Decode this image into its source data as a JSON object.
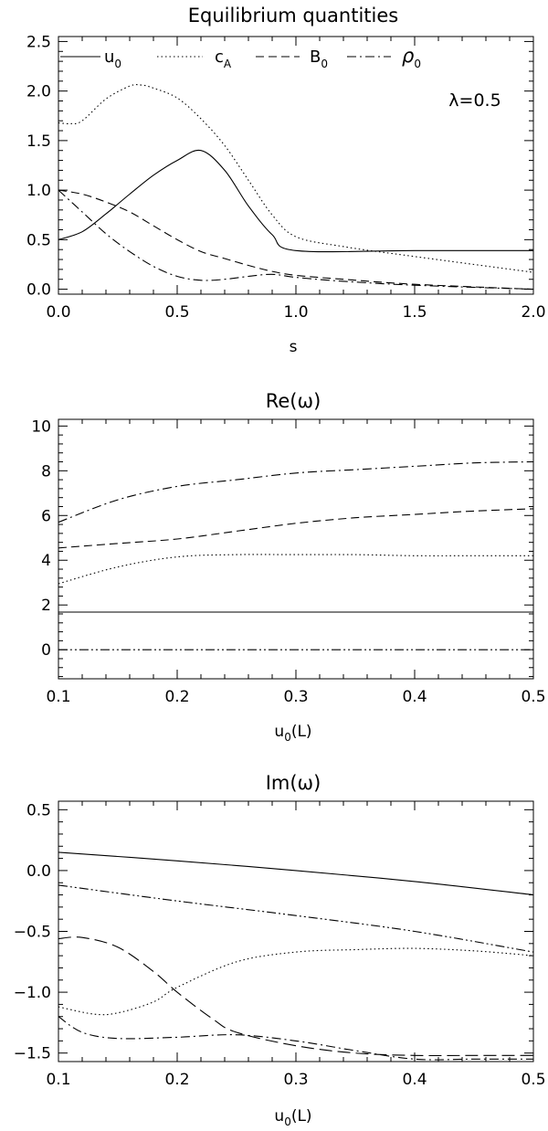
{
  "chart_data": [
    {
      "type": "line",
      "title": "Equilibrium quantities",
      "xlabel": "s",
      "ylabel": "",
      "xlim": [
        0,
        2
      ],
      "ylim": [
        -0.05,
        2.55
      ],
      "xticks": [
        "0.0",
        "0.5",
        "1.0",
        "1.5",
        "2.0"
      ],
      "yticks": [
        "0.0",
        "0.5",
        "1.0",
        "1.5",
        "2.0",
        "2.5"
      ],
      "annotation": "λ=0.5",
      "legend": "top, horizontal",
      "series": [
        {
          "name": "u",
          "subscript": "0",
          "dash": "solid",
          "x": [
            0,
            0.1,
            0.2,
            0.3,
            0.4,
            0.5,
            0.6,
            0.7,
            0.8,
            0.9,
            1.0,
            1.5,
            2.0
          ],
          "y": [
            0.5,
            0.58,
            0.76,
            0.96,
            1.15,
            1.3,
            1.4,
            1.2,
            0.84,
            0.55,
            0.39,
            0.39,
            0.39
          ]
        },
        {
          "name": "c",
          "subscript": "A",
          "dash": "dotted",
          "x": [
            0,
            0.05,
            0.1,
            0.2,
            0.3,
            0.35,
            0.4,
            0.5,
            0.6,
            0.7,
            0.8,
            0.9,
            1.0,
            1.2,
            1.5,
            2.0
          ],
          "y": [
            1.68,
            1.67,
            1.7,
            1.92,
            2.05,
            2.06,
            2.03,
            1.93,
            1.72,
            1.45,
            1.1,
            0.75,
            0.53,
            0.43,
            0.33,
            0.17
          ]
        },
        {
          "name": "B",
          "subscript": "0",
          "dash": "dashed",
          "x": [
            0,
            0.1,
            0.2,
            0.3,
            0.4,
            0.5,
            0.6,
            0.7,
            0.8,
            0.9,
            1.0,
            1.2,
            1.5,
            2.0
          ],
          "y": [
            1.0,
            0.96,
            0.88,
            0.78,
            0.64,
            0.5,
            0.38,
            0.31,
            0.24,
            0.18,
            0.14,
            0.1,
            0.05,
            0.0
          ]
        },
        {
          "name": "ρ",
          "subscript": "0",
          "dash": "dashdot",
          "x": [
            0,
            0.1,
            0.2,
            0.3,
            0.4,
            0.5,
            0.6,
            0.7,
            0.8,
            0.9,
            1.0,
            1.2,
            1.5,
            2.0
          ],
          "y": [
            1.0,
            0.78,
            0.56,
            0.38,
            0.23,
            0.13,
            0.09,
            0.1,
            0.13,
            0.15,
            0.12,
            0.08,
            0.04,
            0.0
          ]
        }
      ]
    },
    {
      "type": "line",
      "title": "Re(ω)",
      "xlabel": "u",
      "xlabel_sub": "0",
      "xlabel_suffix": "(L)",
      "ylabel": "",
      "xlim": [
        0.1,
        0.5
      ],
      "ylim": [
        -1.3,
        10.3
      ],
      "xticks": [
        "0.1",
        "0.2",
        "0.3",
        "0.4",
        "0.5"
      ],
      "yticks": [
        "0",
        "2",
        "4",
        "6",
        "8",
        "10"
      ],
      "series": [
        {
          "dash": "dashdot",
          "x": [
            0.1,
            0.15,
            0.2,
            0.25,
            0.3,
            0.35,
            0.4,
            0.45,
            0.5
          ],
          "y": [
            5.7,
            6.7,
            7.3,
            7.6,
            7.9,
            8.05,
            8.2,
            8.35,
            8.4
          ]
        },
        {
          "dash": "dashed",
          "x": [
            0.1,
            0.15,
            0.2,
            0.25,
            0.3,
            0.35,
            0.4,
            0.45,
            0.5
          ],
          "y": [
            4.55,
            4.75,
            4.95,
            5.3,
            5.65,
            5.9,
            6.05,
            6.2,
            6.3
          ]
        },
        {
          "dash": "dotted",
          "x": [
            0.1,
            0.15,
            0.2,
            0.25,
            0.3,
            0.35,
            0.4,
            0.45,
            0.5
          ],
          "y": [
            2.95,
            3.7,
            4.15,
            4.25,
            4.25,
            4.25,
            4.2,
            4.2,
            4.2
          ]
        },
        {
          "dash": "solid",
          "x": [
            0.1,
            0.5
          ],
          "y": [
            1.68,
            1.68
          ]
        },
        {
          "dash": "dashdotdot",
          "x": [
            0.1,
            0.5
          ],
          "y": [
            0.0,
            0.0
          ]
        }
      ]
    },
    {
      "type": "line",
      "title": "Im(ω)",
      "xlabel": "u",
      "xlabel_sub": "0",
      "xlabel_suffix": "(L)",
      "ylabel": "",
      "xlim": [
        0.1,
        0.5
      ],
      "ylim": [
        -1.57,
        0.57
      ],
      "xticks": [
        "0.1",
        "0.2",
        "0.3",
        "0.4",
        "0.5"
      ],
      "yticks": [
        "−1.5",
        "−1.0",
        "−0.5",
        "0.0",
        "0.5"
      ],
      "ytick_values": [
        -1.5,
        -1.0,
        -0.5,
        0.0,
        0.5
      ],
      "series": [
        {
          "dash": "solid",
          "x": [
            0.1,
            0.2,
            0.3,
            0.4,
            0.5
          ],
          "y": [
            0.15,
            0.08,
            0.0,
            -0.09,
            -0.2
          ]
        },
        {
          "dash": "dashdotdot",
          "x": [
            0.1,
            0.2,
            0.3,
            0.4,
            0.5
          ],
          "y": [
            -0.12,
            -0.25,
            -0.37,
            -0.5,
            -0.67
          ]
        },
        {
          "dash": "dotted",
          "x": [
            0.1,
            0.13,
            0.15,
            0.18,
            0.2,
            0.25,
            0.3,
            0.35,
            0.4,
            0.45,
            0.5
          ],
          "y": [
            -1.12,
            -1.18,
            -1.17,
            -1.08,
            -0.96,
            -0.75,
            -0.67,
            -0.65,
            -0.64,
            -0.66,
            -0.7
          ]
        },
        {
          "dash": "longdash",
          "x": [
            0.1,
            0.12,
            0.15,
            0.18,
            0.2,
            0.23,
            0.25,
            0.3,
            0.35,
            0.4,
            0.45,
            0.5
          ],
          "y": [
            -0.56,
            -0.55,
            -0.63,
            -0.83,
            -1.0,
            -1.22,
            -1.33,
            -1.44,
            -1.5,
            -1.52,
            -1.52,
            -1.52
          ]
        },
        {
          "dash": "dashdot",
          "x": [
            0.1,
            0.12,
            0.15,
            0.2,
            0.25,
            0.3,
            0.35,
            0.4,
            0.45,
            0.5
          ],
          "y": [
            -1.2,
            -1.33,
            -1.38,
            -1.37,
            -1.35,
            -1.4,
            -1.48,
            -1.55,
            -1.55,
            -1.55
          ]
        }
      ]
    }
  ]
}
